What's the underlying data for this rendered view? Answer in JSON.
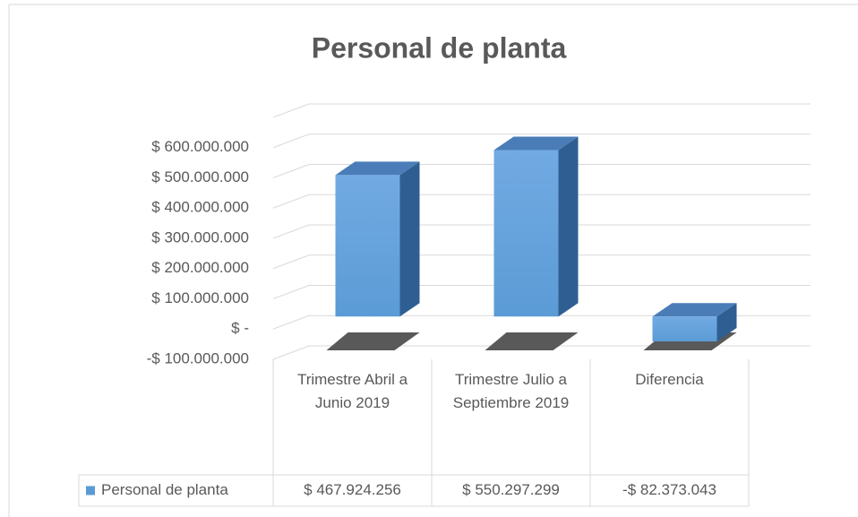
{
  "chart_data": {
    "type": "bar",
    "title": "Personal de planta",
    "categories": [
      "Trimestre Abril a Junio 2019",
      "Trimestre Julio a Septiembre 2019",
      "Diferencia"
    ],
    "series": [
      {
        "name": "Personal de planta",
        "color": "#5b9bd5",
        "values": [
          467924256,
          550297299,
          -82373043
        ],
        "value_labels": [
          "$ 467.924.256",
          "$ 550.297.299",
          "-$ 82.373.043"
        ]
      }
    ],
    "ylim": [
      -100000000,
      700000000
    ],
    "yticks": [
      {
        "value": -100000000,
        "label": "-$ 100.000.000"
      },
      {
        "value": 0,
        "label": "$ -"
      },
      {
        "value": 100000000,
        "label": "$ 100.000.000"
      },
      {
        "value": 200000000,
        "label": "$ 200.000.000"
      },
      {
        "value": 300000000,
        "label": "$ 300.000.000"
      },
      {
        "value": 400000000,
        "label": "$ 400.000.000"
      },
      {
        "value": 500000000,
        "label": "$ 500.000.000"
      },
      {
        "value": 600000000,
        "label": "$ 600.000.000"
      }
    ],
    "grid": true,
    "legend": "bottom"
  }
}
